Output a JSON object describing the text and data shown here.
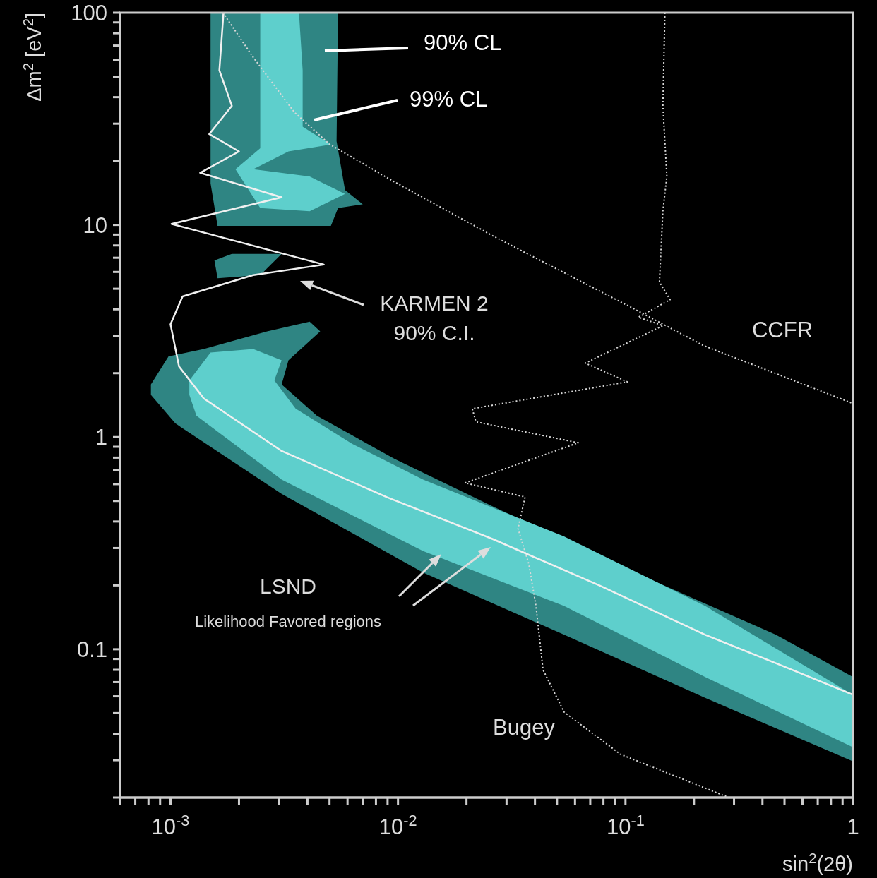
{
  "chart_data": {
    "type": "line",
    "xlabel": "sin$^{2}$(2θ)",
    "ylabel": "Δm$^{2}$ [eV$^{2}$]",
    "log": "xy",
    "xlim": [
      0.0006,
      1
    ],
    "ylim": [
      0.02,
      100
    ],
    "xticks": [
      {
        "value": 0.0006,
        "label": null
      },
      {
        "value": 0.0007,
        "label": null
      },
      {
        "value": 0.0008,
        "label": null
      },
      {
        "value": 0.0009,
        "label": null
      },
      {
        "value": 0.001,
        "label": "10$^{-3}$"
      },
      {
        "value": 0.002,
        "label": null
      },
      {
        "value": 0.003,
        "label": null
      },
      {
        "value": 0.004,
        "label": null
      },
      {
        "value": 0.005,
        "label": null
      },
      {
        "value": 0.006,
        "label": null
      },
      {
        "value": 0.007,
        "label": null
      },
      {
        "value": 0.008,
        "label": null
      },
      {
        "value": 0.009,
        "label": null
      },
      {
        "value": 0.01,
        "label": "10$^{-2}$"
      },
      {
        "value": 0.02,
        "label": null
      },
      {
        "value": 0.03,
        "label": null
      },
      {
        "value": 0.04,
        "label": null
      },
      {
        "value": 0.05,
        "label": null
      },
      {
        "value": 0.06,
        "label": null
      },
      {
        "value": 0.07,
        "label": null
      },
      {
        "value": 0.08,
        "label": null
      },
      {
        "value": 0.09,
        "label": null
      },
      {
        "value": 0.1,
        "label": "10$^{-1}$"
      },
      {
        "value": 0.2,
        "label": null
      },
      {
        "value": 0.3,
        "label": null
      },
      {
        "value": 0.4,
        "label": null
      },
      {
        "value": 0.5,
        "label": null
      },
      {
        "value": 0.6,
        "label": null
      },
      {
        "value": 0.7,
        "label": null
      },
      {
        "value": 0.8,
        "label": null
      },
      {
        "value": 0.9,
        "label": null
      },
      1
    ],
    "yticks": [
      {
        "value": 0.02,
        "label": null
      },
      {
        "value": 0.03,
        "label": null
      },
      {
        "value": 0.04,
        "label": null
      },
      {
        "value": 0.05,
        "label": null
      },
      {
        "value": 0.06,
        "label": null
      },
      {
        "value": 0.07,
        "label": null
      },
      {
        "value": 0.08,
        "label": null
      },
      {
        "value": 0.09,
        "label": null
      },
      0.1,
      {
        "value": 0.2,
        "label": null
      },
      {
        "value": 0.3,
        "label": null
      },
      {
        "value": 0.4,
        "label": null
      },
      {
        "value": 0.5,
        "label": null
      },
      {
        "value": 0.6,
        "label": null
      },
      {
        "value": 0.7,
        "label": null
      },
      {
        "value": 0.8,
        "label": null
      },
      {
        "value": 0.9,
        "label": null
      },
      1,
      {
        "value": 2,
        "label": null
      },
      {
        "value": 3,
        "label": null
      },
      {
        "value": 4,
        "label": null
      },
      {
        "value": 5,
        "label": null
      },
      {
        "value": 6,
        "label": null
      },
      {
        "value": 7,
        "label": null
      },
      {
        "value": 8,
        "label": null
      },
      {
        "value": 9,
        "label": null
      },
      10,
      {
        "value": 20,
        "label": null
      },
      {
        "value": 30,
        "label": null
      },
      {
        "value": 40,
        "label": null
      },
      {
        "value": 50,
        "label": null
      },
      {
        "value": 60,
        "label": null
      },
      {
        "value": 70,
        "label": null
      },
      {
        "value": 80,
        "label": null
      },
      {
        "value": 90,
        "label": null
      },
      100
    ],
    "series": [
      {
        "type": "area",
        "color": "#2f8583",
        "x": [
          0.00082,
          0.00098,
          0.0014,
          0.00266,
          0.00409,
          0.00455,
          0.0033,
          0.00308,
          0.0044,
          0.00964,
          0.0262,
          0.11,
          0.458,
          1,
          1,
          0.224,
          0.0537,
          0.0129,
          0.00308,
          0.00105,
          0.00082
        ],
        "values": [
          1.77,
          2.4,
          2.6,
          3.15,
          3.5,
          3.15,
          2.3,
          1.77,
          1.26,
          0.79,
          0.47,
          0.23,
          0.117,
          0.074,
          0.0296,
          0.059,
          0.117,
          0.23,
          0.54,
          1.16,
          1.58
        ]
      },
      {
        "type": "area",
        "color": "#2f8583",
        "x": [
          0.0015,
          0.00545,
          0.00537,
          0.00585,
          0.007,
          0.00545,
          0.00507,
          0.00161,
          0.0015
        ],
        "values": [
          100,
          100,
          24.8,
          14.6,
          12.5,
          12,
          9.9,
          9.9,
          15.7
        ]
      },
      {
        "type": "area",
        "color": "#2f8583",
        "x": [
          0.00156,
          0.00186,
          0.00308,
          0.00248,
          0.00161
        ],
        "values": [
          6.8,
          7.3,
          7.3,
          5.8,
          5.6
        ]
      },
      {
        "type": "area",
        "color": "#5ecfcc",
        "x": [
          0.00121,
          0.0015,
          0.00231,
          0.00308,
          0.00286,
          0.00355,
          0.00628,
          0.0129,
          0.0537,
          0.224,
          1,
          1,
          0.224,
          0.0537,
          0.0129,
          0.00308,
          0.0013,
          0.00121
        ],
        "values": [
          1.85,
          2.5,
          2.6,
          2.3,
          1.85,
          1.36,
          0.93,
          0.63,
          0.34,
          0.16,
          0.061,
          0.0345,
          0.074,
          0.16,
          0.29,
          0.63,
          1.26,
          1.58
        ]
      },
      {
        "type": "area",
        "color": "#5ecfcc",
        "x": [
          0.00248,
          0.00367,
          0.00381,
          0.00381,
          0.00507,
          0.0033,
          0.00231,
          0.00409,
          0.00585,
          0.00409,
          0.00248,
          0.00193,
          0.00248,
          0.00248
        ],
        "values": [
          100,
          100,
          53.5,
          29,
          23.9,
          22.2,
          18.3,
          16.9,
          14,
          11.6,
          12,
          18.3,
          23,
          53.5
        ]
      },
      {
        "color": "#f0f0f0",
        "line_style": "solid",
        "x": [
          0.00171,
          0.00164,
          0.00186,
          0.00148,
          0.002,
          0.00135,
          0.00308,
          0.00101,
          0.00472,
          0.00231,
          0.00113,
          0.001,
          0.00109,
          0.0014,
          0.00308,
          0.00897,
          0.0262,
          0.0767,
          0.224,
          0.458,
          1
        ],
        "values": [
          100,
          53.5,
          36.4,
          26.8,
          22.2,
          17.6,
          13.5,
          10.1,
          6.5,
          5.8,
          4.6,
          3.4,
          2.15,
          1.52,
          0.86,
          0.52,
          0.33,
          0.2,
          0.117,
          0.086,
          0.061
        ]
      },
      {
        "color": "#d8d8d8",
        "line_style": "dotted",
        "x": [
          0.0017,
          0.0023,
          0.0035,
          0.005,
          0.0096,
          0.026,
          0.11,
          0.22,
          1
        ],
        "values": [
          100,
          62,
          34,
          24,
          16,
          8.9,
          4,
          2.7,
          1.44
        ]
      },
      {
        "color": "#d8d8d8",
        "line_style": "dotted",
        "x": [
          0.149,
          0.146,
          0.152,
          0.146,
          0.141,
          0.157,
          0.114,
          0.146,
          0.0666,
          0.102,
          0.0212,
          0.022,
          0.062,
          0.0197,
          0.0362,
          0.0337,
          0.0376,
          0.0404,
          0.0434,
          0.0537,
          0.095,
          0.278
        ],
        "values": [
          100,
          36.4,
          16.9,
          11.6,
          5.38,
          4.44,
          3.67,
          3.35,
          2.23,
          1.82,
          1.36,
          1.18,
          0.94,
          0.608,
          0.522,
          0.37,
          0.252,
          0.16,
          0.08,
          0.0506,
          0.032,
          0.0202
        ]
      }
    ],
    "annotations": [
      "90% CL",
      "99% CL",
      "KARMEN 2\n90% C.I.",
      "CCFR",
      "Bugey",
      "LSND\nLikelihood Favored regions"
    ]
  }
}
